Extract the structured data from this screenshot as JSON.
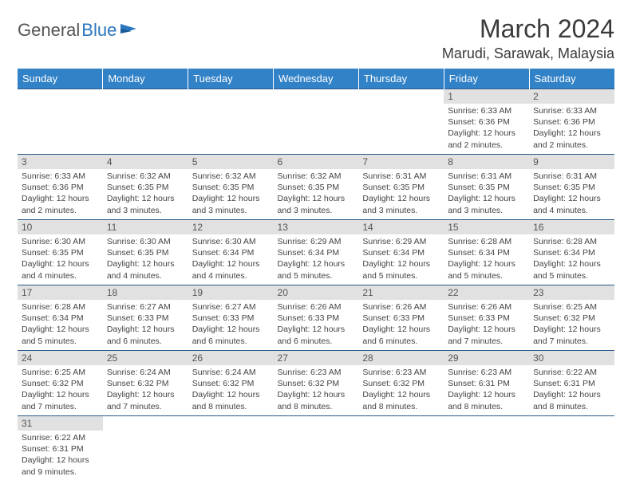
{
  "logo": {
    "general": "General",
    "blue": "Blue"
  },
  "title": "March 2024",
  "location": "Marudi, Sarawak, Malaysia",
  "colors": {
    "header_bg": "#3282c8",
    "header_text": "#ffffff",
    "daynum_bg": "#e1e1e1",
    "daynum_text": "#555555",
    "border": "#2a5a8a",
    "body_text": "#444444",
    "logo_blue": "#2a77bf"
  },
  "weekdays": [
    "Sunday",
    "Monday",
    "Tuesday",
    "Wednesday",
    "Thursday",
    "Friday",
    "Saturday"
  ],
  "fonts": {
    "title_size": 32,
    "location_size": 18,
    "weekday_size": 13,
    "daynum_size": 12,
    "cell_size": 10.5
  },
  "weeks": [
    [
      null,
      null,
      null,
      null,
      null,
      {
        "n": "1",
        "sunrise": "Sunrise: 6:33 AM",
        "sunset": "Sunset: 6:36 PM",
        "day1": "Daylight: 12 hours",
        "day2": "and 2 minutes."
      },
      {
        "n": "2",
        "sunrise": "Sunrise: 6:33 AM",
        "sunset": "Sunset: 6:36 PM",
        "day1": "Daylight: 12 hours",
        "day2": "and 2 minutes."
      }
    ],
    [
      {
        "n": "3",
        "sunrise": "Sunrise: 6:33 AM",
        "sunset": "Sunset: 6:36 PM",
        "day1": "Daylight: 12 hours",
        "day2": "and 2 minutes."
      },
      {
        "n": "4",
        "sunrise": "Sunrise: 6:32 AM",
        "sunset": "Sunset: 6:35 PM",
        "day1": "Daylight: 12 hours",
        "day2": "and 3 minutes."
      },
      {
        "n": "5",
        "sunrise": "Sunrise: 6:32 AM",
        "sunset": "Sunset: 6:35 PM",
        "day1": "Daylight: 12 hours",
        "day2": "and 3 minutes."
      },
      {
        "n": "6",
        "sunrise": "Sunrise: 6:32 AM",
        "sunset": "Sunset: 6:35 PM",
        "day1": "Daylight: 12 hours",
        "day2": "and 3 minutes."
      },
      {
        "n": "7",
        "sunrise": "Sunrise: 6:31 AM",
        "sunset": "Sunset: 6:35 PM",
        "day1": "Daylight: 12 hours",
        "day2": "and 3 minutes."
      },
      {
        "n": "8",
        "sunrise": "Sunrise: 6:31 AM",
        "sunset": "Sunset: 6:35 PM",
        "day1": "Daylight: 12 hours",
        "day2": "and 3 minutes."
      },
      {
        "n": "9",
        "sunrise": "Sunrise: 6:31 AM",
        "sunset": "Sunset: 6:35 PM",
        "day1": "Daylight: 12 hours",
        "day2": "and 4 minutes."
      }
    ],
    [
      {
        "n": "10",
        "sunrise": "Sunrise: 6:30 AM",
        "sunset": "Sunset: 6:35 PM",
        "day1": "Daylight: 12 hours",
        "day2": "and 4 minutes."
      },
      {
        "n": "11",
        "sunrise": "Sunrise: 6:30 AM",
        "sunset": "Sunset: 6:35 PM",
        "day1": "Daylight: 12 hours",
        "day2": "and 4 minutes."
      },
      {
        "n": "12",
        "sunrise": "Sunrise: 6:30 AM",
        "sunset": "Sunset: 6:34 PM",
        "day1": "Daylight: 12 hours",
        "day2": "and 4 minutes."
      },
      {
        "n": "13",
        "sunrise": "Sunrise: 6:29 AM",
        "sunset": "Sunset: 6:34 PM",
        "day1": "Daylight: 12 hours",
        "day2": "and 5 minutes."
      },
      {
        "n": "14",
        "sunrise": "Sunrise: 6:29 AM",
        "sunset": "Sunset: 6:34 PM",
        "day1": "Daylight: 12 hours",
        "day2": "and 5 minutes."
      },
      {
        "n": "15",
        "sunrise": "Sunrise: 6:28 AM",
        "sunset": "Sunset: 6:34 PM",
        "day1": "Daylight: 12 hours",
        "day2": "and 5 minutes."
      },
      {
        "n": "16",
        "sunrise": "Sunrise: 6:28 AM",
        "sunset": "Sunset: 6:34 PM",
        "day1": "Daylight: 12 hours",
        "day2": "and 5 minutes."
      }
    ],
    [
      {
        "n": "17",
        "sunrise": "Sunrise: 6:28 AM",
        "sunset": "Sunset: 6:34 PM",
        "day1": "Daylight: 12 hours",
        "day2": "and 5 minutes."
      },
      {
        "n": "18",
        "sunrise": "Sunrise: 6:27 AM",
        "sunset": "Sunset: 6:33 PM",
        "day1": "Daylight: 12 hours",
        "day2": "and 6 minutes."
      },
      {
        "n": "19",
        "sunrise": "Sunrise: 6:27 AM",
        "sunset": "Sunset: 6:33 PM",
        "day1": "Daylight: 12 hours",
        "day2": "and 6 minutes."
      },
      {
        "n": "20",
        "sunrise": "Sunrise: 6:26 AM",
        "sunset": "Sunset: 6:33 PM",
        "day1": "Daylight: 12 hours",
        "day2": "and 6 minutes."
      },
      {
        "n": "21",
        "sunrise": "Sunrise: 6:26 AM",
        "sunset": "Sunset: 6:33 PM",
        "day1": "Daylight: 12 hours",
        "day2": "and 6 minutes."
      },
      {
        "n": "22",
        "sunrise": "Sunrise: 6:26 AM",
        "sunset": "Sunset: 6:33 PM",
        "day1": "Daylight: 12 hours",
        "day2": "and 7 minutes."
      },
      {
        "n": "23",
        "sunrise": "Sunrise: 6:25 AM",
        "sunset": "Sunset: 6:32 PM",
        "day1": "Daylight: 12 hours",
        "day2": "and 7 minutes."
      }
    ],
    [
      {
        "n": "24",
        "sunrise": "Sunrise: 6:25 AM",
        "sunset": "Sunset: 6:32 PM",
        "day1": "Daylight: 12 hours",
        "day2": "and 7 minutes."
      },
      {
        "n": "25",
        "sunrise": "Sunrise: 6:24 AM",
        "sunset": "Sunset: 6:32 PM",
        "day1": "Daylight: 12 hours",
        "day2": "and 7 minutes."
      },
      {
        "n": "26",
        "sunrise": "Sunrise: 6:24 AM",
        "sunset": "Sunset: 6:32 PM",
        "day1": "Daylight: 12 hours",
        "day2": "and 8 minutes."
      },
      {
        "n": "27",
        "sunrise": "Sunrise: 6:23 AM",
        "sunset": "Sunset: 6:32 PM",
        "day1": "Daylight: 12 hours",
        "day2": "and 8 minutes."
      },
      {
        "n": "28",
        "sunrise": "Sunrise: 6:23 AM",
        "sunset": "Sunset: 6:32 PM",
        "day1": "Daylight: 12 hours",
        "day2": "and 8 minutes."
      },
      {
        "n": "29",
        "sunrise": "Sunrise: 6:23 AM",
        "sunset": "Sunset: 6:31 PM",
        "day1": "Daylight: 12 hours",
        "day2": "and 8 minutes."
      },
      {
        "n": "30",
        "sunrise": "Sunrise: 6:22 AM",
        "sunset": "Sunset: 6:31 PM",
        "day1": "Daylight: 12 hours",
        "day2": "and 8 minutes."
      }
    ],
    [
      {
        "n": "31",
        "sunrise": "Sunrise: 6:22 AM",
        "sunset": "Sunset: 6:31 PM",
        "day1": "Daylight: 12 hours",
        "day2": "and 9 minutes."
      },
      null,
      null,
      null,
      null,
      null,
      null
    ]
  ]
}
